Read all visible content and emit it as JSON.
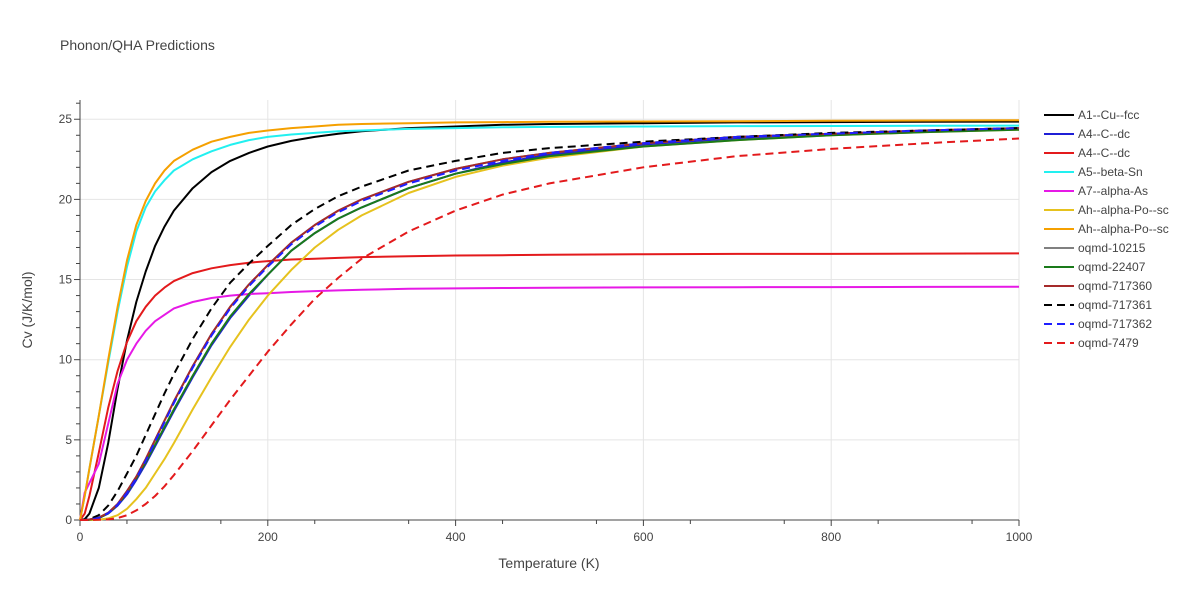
{
  "chart_data": {
    "type": "line",
    "title": "Phonon/QHA Predictions",
    "xlabel": "Temperature (K)",
    "ylabel": "Cv (J/K/mol)",
    "xlim": [
      0,
      1000
    ],
    "ylim": [
      0,
      26.2
    ],
    "xticks": [
      0,
      200,
      400,
      600,
      800,
      1000
    ],
    "yticks": [
      0,
      5,
      10,
      15,
      20,
      25
    ],
    "grid": true,
    "legend_position": "right",
    "x": [
      0,
      5,
      10,
      20,
      30,
      40,
      50,
      60,
      70,
      80,
      90,
      100,
      120,
      140,
      160,
      180,
      200,
      225,
      250,
      275,
      300,
      350,
      400,
      450,
      500,
      600,
      700,
      800,
      900,
      1000
    ],
    "series": [
      {
        "name": "A1--Cu--fcc",
        "color": "#000000",
        "dash": "solid",
        "values": [
          0,
          0.05,
          0.4,
          2.0,
          4.8,
          8.2,
          11.2,
          13.6,
          15.5,
          17.1,
          18.3,
          19.3,
          20.7,
          21.7,
          22.4,
          22.9,
          23.3,
          23.65,
          23.9,
          24.1,
          24.25,
          24.45,
          24.55,
          24.65,
          24.7,
          24.75,
          24.8,
          24.82,
          24.84,
          24.85
        ]
      },
      {
        "name": "A4--C--dc",
        "color": "#1f1fd6",
        "dash": "solid",
        "values": [
          0,
          0,
          0.02,
          0.12,
          0.4,
          0.9,
          1.6,
          2.5,
          3.5,
          4.6,
          5.7,
          6.8,
          8.9,
          10.9,
          12.6,
          14.0,
          15.3,
          16.8,
          17.9,
          18.8,
          19.5,
          20.7,
          21.6,
          22.3,
          22.8,
          23.4,
          23.8,
          24.05,
          24.25,
          24.4
        ]
      },
      {
        "name": "A4--C--dc",
        "color": "#e31a1c",
        "dash": "solid",
        "values": [
          0,
          0.4,
          1.5,
          4.2,
          7.0,
          9.3,
          11.1,
          12.4,
          13.3,
          14.0,
          14.5,
          14.9,
          15.4,
          15.7,
          15.9,
          16.05,
          16.15,
          16.25,
          16.3,
          16.35,
          16.4,
          16.45,
          16.5,
          16.52,
          16.55,
          16.58,
          16.6,
          16.6,
          16.62,
          16.63
        ]
      },
      {
        "name": "A5--beta-Sn",
        "color": "#22f0f0",
        "dash": "solid",
        "values": [
          0,
          1.5,
          3.2,
          6.5,
          9.8,
          13.0,
          15.8,
          18.0,
          19.5,
          20.5,
          21.2,
          21.8,
          22.5,
          23.0,
          23.4,
          23.7,
          23.9,
          24.05,
          24.15,
          24.25,
          24.3,
          24.4,
          24.45,
          24.5,
          24.52,
          24.55,
          24.57,
          24.58,
          24.59,
          24.6
        ]
      },
      {
        "name": "A7--alpha-As",
        "color": "#e619e6",
        "dash": "solid",
        "values": [
          0,
          1.7,
          2.3,
          3.5,
          6.0,
          8.5,
          10.0,
          11.0,
          11.8,
          12.4,
          12.8,
          13.2,
          13.6,
          13.85,
          14.0,
          14.1,
          14.15,
          14.22,
          14.28,
          14.32,
          14.36,
          14.42,
          14.45,
          14.47,
          14.49,
          14.51,
          14.52,
          14.53,
          14.54,
          14.55
        ]
      },
      {
        "name": "Ah--alpha-Po--sc",
        "color": "#e6c21e",
        "dash": "solid",
        "values": [
          0,
          0,
          0,
          0.02,
          0.1,
          0.3,
          0.7,
          1.3,
          2.0,
          2.9,
          3.8,
          4.8,
          6.9,
          8.9,
          10.8,
          12.5,
          14.0,
          15.6,
          17.0,
          18.1,
          19.0,
          20.4,
          21.4,
          22.1,
          22.6,
          23.3,
          23.7,
          24.0,
          24.2,
          24.35
        ]
      },
      {
        "name": "Ah--alpha-Po--sc",
        "color": "#f5a000",
        "dash": "solid",
        "values": [
          0,
          1.5,
          3.2,
          6.5,
          10.0,
          13.3,
          16.2,
          18.4,
          19.9,
          21.0,
          21.8,
          22.4,
          23.1,
          23.6,
          23.9,
          24.15,
          24.3,
          24.45,
          24.55,
          24.65,
          24.7,
          24.75,
          24.8,
          24.82,
          24.84,
          24.86,
          24.88,
          24.9,
          24.92,
          24.94
        ]
      },
      {
        "name": "oqmd-10215",
        "color": "#808080",
        "dash": "solid",
        "values": [
          0,
          0,
          0.03,
          0.15,
          0.45,
          1.0,
          1.8,
          2.7,
          3.8,
          5.0,
          6.2,
          7.4,
          9.6,
          11.6,
          13.3,
          14.7,
          15.9,
          17.3,
          18.4,
          19.3,
          20.0,
          21.1,
          21.9,
          22.5,
          22.9,
          23.5,
          23.9,
          24.1,
          24.3,
          24.45
        ]
      },
      {
        "name": "oqmd-22407",
        "color": "#1a7a1a",
        "dash": "solid",
        "values": [
          0,
          0,
          0.02,
          0.12,
          0.42,
          0.95,
          1.7,
          2.6,
          3.6,
          4.7,
          5.8,
          6.9,
          9.0,
          11.0,
          12.7,
          14.1,
          15.3,
          16.8,
          17.9,
          18.8,
          19.5,
          20.7,
          21.6,
          22.2,
          22.7,
          23.3,
          23.7,
          24.0,
          24.2,
          24.35
        ]
      },
      {
        "name": "oqmd-717360",
        "color": "#a52a2a",
        "dash": "solid",
        "values": [
          0,
          0,
          0.03,
          0.15,
          0.45,
          1.0,
          1.8,
          2.7,
          3.8,
          5.0,
          6.2,
          7.4,
          9.6,
          11.6,
          13.3,
          14.7,
          15.9,
          17.3,
          18.4,
          19.3,
          20.0,
          21.1,
          21.9,
          22.5,
          22.9,
          23.5,
          23.9,
          24.1,
          24.3,
          24.45
        ]
      },
      {
        "name": "oqmd-717361",
        "color": "#000000",
        "dash": "dash",
        "values": [
          0,
          0,
          0.05,
          0.3,
          0.9,
          1.8,
          2.9,
          4.0,
          5.3,
          6.6,
          7.9,
          9.1,
          11.3,
          13.2,
          14.8,
          16.0,
          17.1,
          18.4,
          19.4,
          20.2,
          20.8,
          21.8,
          22.4,
          22.9,
          23.2,
          23.6,
          23.9,
          24.15,
          24.3,
          24.45
        ]
      },
      {
        "name": "oqmd-717362",
        "color": "#1f1fff",
        "dash": "dash",
        "values": [
          0,
          0,
          0.02,
          0.13,
          0.43,
          0.95,
          1.7,
          2.6,
          3.7,
          4.9,
          6.1,
          7.3,
          9.5,
          11.5,
          13.2,
          14.6,
          15.8,
          17.2,
          18.3,
          19.2,
          19.9,
          21.0,
          21.8,
          22.4,
          22.9,
          23.5,
          23.9,
          24.1,
          24.3,
          24.45
        ]
      },
      {
        "name": "oqmd-7479",
        "color": "#e31a1c",
        "dash": "dash",
        "values": [
          0,
          0,
          0,
          0.01,
          0.04,
          0.12,
          0.3,
          0.6,
          1.0,
          1.5,
          2.1,
          2.8,
          4.3,
          5.9,
          7.5,
          9.0,
          10.5,
          12.2,
          13.8,
          15.1,
          16.3,
          18.0,
          19.3,
          20.3,
          21.0,
          22.0,
          22.7,
          23.15,
          23.5,
          23.8
        ]
      }
    ]
  }
}
